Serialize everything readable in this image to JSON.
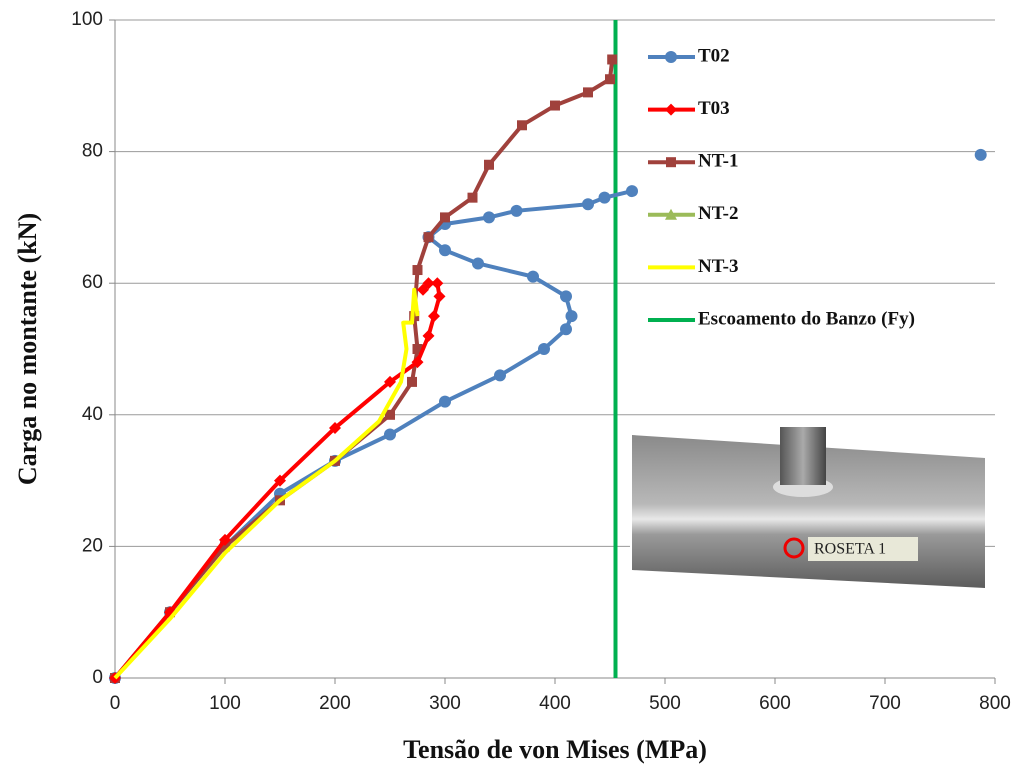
{
  "chart_data": {
    "type": "line",
    "x_label": "Tensão de von Mises (MPa)",
    "y_label": "Carga no montante  (kN)",
    "xlim": [
      0,
      800
    ],
    "xticks": [
      0,
      100,
      200,
      300,
      400,
      500,
      600,
      700,
      800
    ],
    "ylim": [
      0,
      100
    ],
    "yticks": [
      0,
      20,
      40,
      60,
      80,
      100
    ],
    "grid": true,
    "legend": "upper right",
    "series": [
      {
        "name": "T02",
        "color": "#4f81bd",
        "marker": "circle",
        "x": [
          0,
          50,
          100,
          150,
          200,
          250,
          300,
          350,
          390,
          410,
          415,
          410,
          380,
          330,
          300,
          285,
          300,
          340,
          365,
          430,
          445,
          470,
          null,
          787
        ],
        "values": [
          0,
          10,
          20,
          28,
          33,
          37,
          42,
          46,
          50,
          53,
          55,
          58,
          61,
          63,
          65,
          67,
          69,
          70,
          71,
          72,
          73,
          74,
          null,
          79.5
        ]
      },
      {
        "name": "T03",
        "color": "#ff0000",
        "marker": "diamond",
        "x": [
          0,
          50,
          100,
          150,
          200,
          250,
          275,
          285,
          290,
          295,
          293,
          285,
          280
        ],
        "values": [
          0,
          10,
          21,
          30,
          38,
          45,
          48,
          52,
          55,
          58,
          60,
          60,
          59
        ]
      },
      {
        "name": "NT-1",
        "color": "#a0413c",
        "marker": "square",
        "x": [
          0,
          50,
          100,
          150,
          200,
          250,
          270,
          275,
          272,
          275,
          285,
          300,
          325,
          340,
          370,
          400,
          430,
          450,
          452
        ],
        "values": [
          0,
          10,
          20,
          27,
          33,
          40,
          45,
          50,
          55,
          62,
          67,
          70,
          73,
          78,
          84,
          87,
          89,
          91,
          94
        ]
      },
      {
        "name": "NT-2",
        "color": "#9bbb59",
        "marker": "triangle",
        "x": [],
        "values": []
      },
      {
        "name": "NT-3",
        "color": "#ffff00",
        "marker": "none",
        "x": [
          0,
          50,
          100,
          150,
          200,
          240,
          260,
          265,
          262,
          270,
          272,
          275
        ],
        "values": [
          0,
          9,
          19,
          27,
          33,
          39,
          45,
          50,
          54,
          54,
          59,
          55
        ]
      }
    ],
    "reference_lines": [
      {
        "name": "Escoamento do Banzo (Fy)",
        "color": "#00b050",
        "x": 455
      }
    ],
    "inset": {
      "label": "ROSETA 1"
    }
  }
}
